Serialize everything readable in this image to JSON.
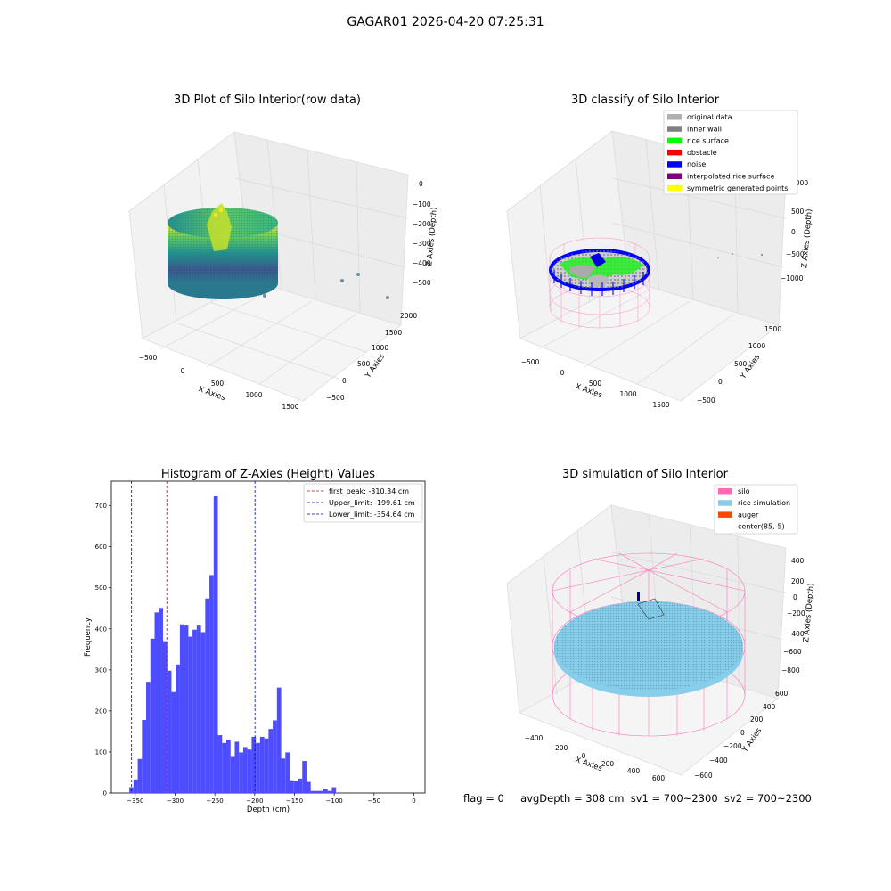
{
  "figure": {
    "suptitle": "GAGAR01 2026-04-20 07:25:31",
    "status": {
      "flag": "flag = 0",
      "avg_depth": "avgDepth = 308 cm",
      "sv1": "sv1 = 700~2300",
      "sv2": "sv2 = 700~2300"
    }
  },
  "colors": {
    "histogram_bar": "#4d4dff",
    "first_peak": "#e00000",
    "limits": "#0000cc",
    "original_data": "#b0b0b0",
    "inner_wall": "#808080",
    "rice_surface": "#00ff00",
    "obstacle": "#ff0000",
    "noise": "#0000ff",
    "interpolated_rice_surface": "#800080",
    "symmetric_generated_points": "#ffff00",
    "silo": "#ff69b4",
    "rice_simulation": "#87ceeb",
    "auger": "#ff4500"
  },
  "chart_data": [
    {
      "type": "scatter3d",
      "title": "3D Plot of Silo Interior(row data)",
      "xlabel": "X Axies",
      "ylabel": "Y Axies",
      "zlabel": "Z Axies (Depth)",
      "xticks": [
        "−500",
        "0",
        "500",
        "1000",
        "1500"
      ],
      "yticks": [
        "−500",
        "0",
        "500",
        "1000",
        "1500",
        "2000"
      ],
      "zticks": [
        "0",
        "−100",
        "−200",
        "−300",
        "−400",
        "−500"
      ],
      "colormap": "viridis"
    },
    {
      "type": "scatter3d",
      "title": "3D classify of Silo Interior",
      "xlabel": "X Axies",
      "ylabel": "Y Axies",
      "zlabel": "Z Axies (Depth)",
      "xticks": [
        "−500",
        "0",
        "500",
        "1000",
        "1500"
      ],
      "yticks": [
        "−500",
        "0",
        "500",
        "1000",
        "1500"
      ],
      "zticks": [
        "1000",
        "500",
        "0",
        "−500",
        "−1000"
      ],
      "legend_position": "top-right",
      "legend": [
        {
          "label": "original data",
          "color": "#b0b0b0"
        },
        {
          "label": "inner wall",
          "color": "#808080"
        },
        {
          "label": "rice surface",
          "color": "#00ff00"
        },
        {
          "label": "obstacle",
          "color": "#ff0000"
        },
        {
          "label": "noise",
          "color": "#0000ff"
        },
        {
          "label": "interpolated rice surface",
          "color": "#800080"
        },
        {
          "label": "symmetric generated points",
          "color": "#ffff00"
        }
      ]
    },
    {
      "type": "bar",
      "title": "Histogram of Z-Axies (Height) Values",
      "xlabel": "Depth (cm)",
      "ylabel": "Frequency",
      "xlim": [
        -380,
        14
      ],
      "ylim": [
        0,
        760
      ],
      "xticks": [
        -350,
        -300,
        -250,
        -200,
        -150,
        -100,
        -50,
        0
      ],
      "yticks": [
        0,
        100,
        200,
        300,
        400,
        500,
        600,
        700
      ],
      "bin_start": -357.5,
      "bin_width": 5.3,
      "values": [
        14,
        33,
        83,
        178,
        271,
        376,
        440,
        451,
        370,
        298,
        246,
        313,
        411,
        408,
        381,
        398,
        408,
        392,
        474,
        531,
        723,
        141,
        122,
        130,
        88,
        125,
        99,
        112,
        106,
        137,
        122,
        137,
        133,
        156,
        177,
        257,
        84,
        99,
        31,
        29,
        35,
        78,
        27,
        5,
        5,
        5,
        9,
        5,
        14
      ],
      "vlines": [
        {
          "x": -310.34,
          "label": "first_peak: -310.34 cm",
          "color": "#e00000"
        },
        {
          "x": -199.61,
          "label": "Upper_limit: -199.61 cm",
          "color": "#0000cc"
        },
        {
          "x": -354.64,
          "label": "Lower_limit: -354.64 cm",
          "color": "#0000cc"
        }
      ],
      "legend_position": "top-right"
    },
    {
      "type": "surface3d",
      "title": "3D simulation of Silo Interior",
      "xlabel": "X Axies",
      "ylabel": "Y Axies",
      "zlabel": "Z Axies (Depth)",
      "xticks": [
        "−400",
        "−200",
        "0",
        "200",
        "400",
        "600"
      ],
      "yticks": [
        "−600",
        "−400",
        "−200",
        "0",
        "200",
        "400",
        "600"
      ],
      "zticks": [
        "400",
        "200",
        "0",
        "−200",
        "−400",
        "−600",
        "−800"
      ],
      "legend_position": "top-right",
      "legend": [
        {
          "label": "silo",
          "color": "#ff69b4"
        },
        {
          "label": "rice simulation",
          "color": "#87ceeb"
        },
        {
          "label": "auger",
          "color": "#ff4500"
        },
        {
          "label": "center(85,-5)",
          "color": ""
        }
      ]
    }
  ]
}
